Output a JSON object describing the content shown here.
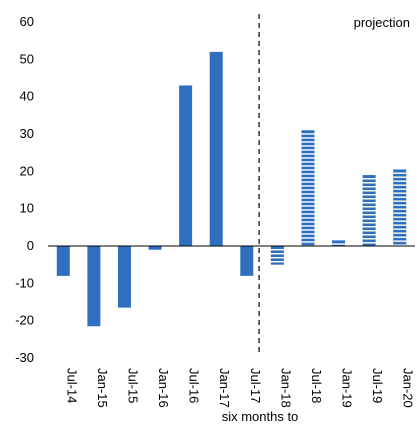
{
  "chart_data": {
    "type": "bar",
    "categories": [
      "Jul-14",
      "Jan-15",
      "Jul-15",
      "Jan-16",
      "Jul-16",
      "Jan-17",
      "Jul-17",
      "Jan-18",
      "Jul-18",
      "Jan-19",
      "Jul-19",
      "Jan-20"
    ],
    "values": [
      -8,
      -21.5,
      -16.5,
      -1,
      43,
      52,
      -8,
      -5,
      31,
      1.5,
      19,
      20.5
    ],
    "projected_from": "Jan-18",
    "xlabel": "six months to",
    "ylabel": "",
    "ylim": [
      -30,
      60
    ],
    "yticks": [
      -30,
      -20,
      -10,
      0,
      10,
      20,
      30,
      40,
      50,
      60
    ],
    "annotation": "projection",
    "grid": false,
    "bar_color": "#2e6fc0",
    "projection_stripe_color": "#ffffff"
  }
}
